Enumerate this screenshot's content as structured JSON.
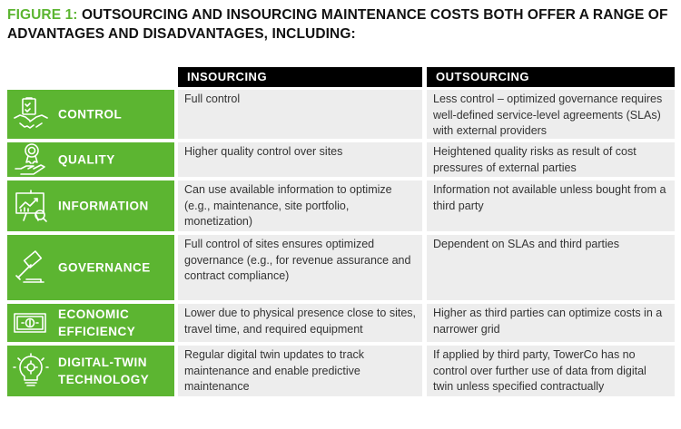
{
  "title": {
    "figure_label": "FIGURE 1:",
    "text": "OUTSOURCING AND INSOURCING MAINTENANCE COSTS BOTH OFFER A RANGE OF ADVANTAGES AND DISADVANTAGES, INCLUDING:"
  },
  "headers": {
    "insourcing": "INSOURCING",
    "outsourcing": "OUTSOURCING"
  },
  "colors": {
    "accent": "#5cb531",
    "cell_bg": "#ededed",
    "header_bg": "#000000"
  },
  "rows": [
    {
      "icon": "handshake-icon",
      "label": "CONTROL",
      "insourcing": "Full control",
      "outsourcing": "Less control – optimized governance requires well-defined service-level agreements (SLAs) with external providers"
    },
    {
      "icon": "quality-medal-hand-icon",
      "label": "QUALITY",
      "insourcing": "Higher quality control over sites",
      "outsourcing": "Heightened quality risks as result of cost pressures of external parties"
    },
    {
      "icon": "presentation-chart-icon",
      "label": "INFORMATION",
      "insourcing": "Can use available information to optimize (e.g., maintenance, site portfolio, monetization)",
      "outsourcing": "Information not available unless bought from a third party"
    },
    {
      "icon": "gavel-icon",
      "label": "GOVERNANCE",
      "insourcing": "Full control of sites ensures optimized governance (e.g., for revenue assurance and contract compliance)",
      "outsourcing": "Dependent on SLAs and third parties"
    },
    {
      "icon": "money-bill-icon",
      "label": "ECONOMIC EFFICIENCY",
      "insourcing": "Lower due to physical presence close to sites, travel time, and required equipment",
      "outsourcing": "Higher as third parties can optimize costs in a narrower grid"
    },
    {
      "icon": "lightbulb-gear-icon",
      "label": "DIGITAL-TWIN TECHNOLOGY",
      "insourcing": "Regular digital twin updates to track maintenance and enable predictive maintenance",
      "outsourcing": "If applied by third party, TowerCo has no control over further use of data from digital twin unless specified contractually"
    }
  ]
}
